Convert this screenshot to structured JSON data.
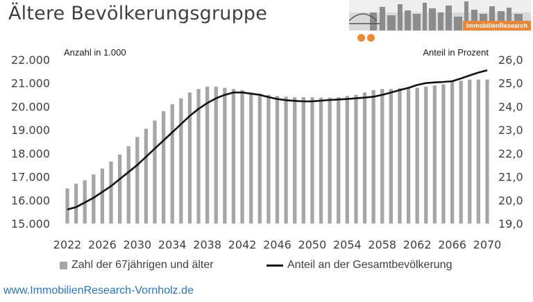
{
  "header": {
    "title": "Ältere Bevölkerungsgruppe"
  },
  "banner": {
    "label": "ImmobilienResearch",
    "accent_color": "#e8873a"
  },
  "footer": {
    "url": "www.ImmobilienResearch-Vornholz.de"
  },
  "chart_data": {
    "type": "bar+line",
    "left_axis_note": "Anzahl in 1.000",
    "right_axis_note": "Anteil in Prozent",
    "x_ticks": [
      "2022",
      "2026",
      "2030",
      "2034",
      "2038",
      "2042",
      "2046",
      "2050",
      "2054",
      "2058",
      "2062",
      "2066",
      "2070"
    ],
    "y_left_ticks": [
      "15.000",
      "16.000",
      "17.000",
      "18.000",
      "19.000",
      "20.000",
      "21.000",
      "22.000"
    ],
    "y_right_ticks": [
      "19,0",
      "20,0",
      "21,0",
      "22,0",
      "23,0",
      "24,0",
      "25,0",
      "26,0"
    ],
    "ylim_left": [
      15000,
      22000
    ],
    "ylim_right": [
      19.0,
      26.0
    ],
    "x": [
      2022,
      2023,
      2024,
      2025,
      2026,
      2027,
      2028,
      2029,
      2030,
      2031,
      2032,
      2033,
      2034,
      2035,
      2036,
      2037,
      2038,
      2039,
      2040,
      2041,
      2042,
      2043,
      2044,
      2045,
      2046,
      2047,
      2048,
      2049,
      2050,
      2051,
      2052,
      2053,
      2054,
      2055,
      2056,
      2057,
      2058,
      2059,
      2060,
      2061,
      2062,
      2063,
      2064,
      2065,
      2066,
      2067,
      2068,
      2069,
      2070
    ],
    "series": [
      {
        "name": "Zahl der 67jährigen und älter",
        "kind": "bar",
        "color": "#a6a6a6",
        "axis": "left",
        "values": [
          16500,
          16700,
          16850,
          17100,
          17350,
          17650,
          17950,
          18300,
          18700,
          19050,
          19400,
          19800,
          20100,
          20350,
          20600,
          20750,
          20850,
          20850,
          20800,
          20750,
          20700,
          20600,
          20550,
          20500,
          20450,
          20420,
          20400,
          20400,
          20400,
          20380,
          20380,
          20400,
          20450,
          20500,
          20600,
          20700,
          20750,
          20750,
          20780,
          20780,
          20800,
          20850,
          20900,
          20950,
          21050,
          21100,
          21150,
          21150,
          21150
        ]
      },
      {
        "name": "Anteil an der Gesamtbevölkerung",
        "kind": "line",
        "color": "#111111",
        "axis": "right",
        "values": [
          19.6,
          19.7,
          19.9,
          20.1,
          20.35,
          20.6,
          20.9,
          21.2,
          21.5,
          21.85,
          22.2,
          22.55,
          22.9,
          23.25,
          23.6,
          23.9,
          24.15,
          24.35,
          24.5,
          24.6,
          24.6,
          24.55,
          24.5,
          24.4,
          24.32,
          24.27,
          24.24,
          24.22,
          24.22,
          24.25,
          24.28,
          24.3,
          24.32,
          24.35,
          24.38,
          24.42,
          24.5,
          24.6,
          24.7,
          24.8,
          24.92,
          25.0,
          25.03,
          25.05,
          25.08,
          25.2,
          25.33,
          25.45,
          25.55
        ]
      }
    ]
  }
}
